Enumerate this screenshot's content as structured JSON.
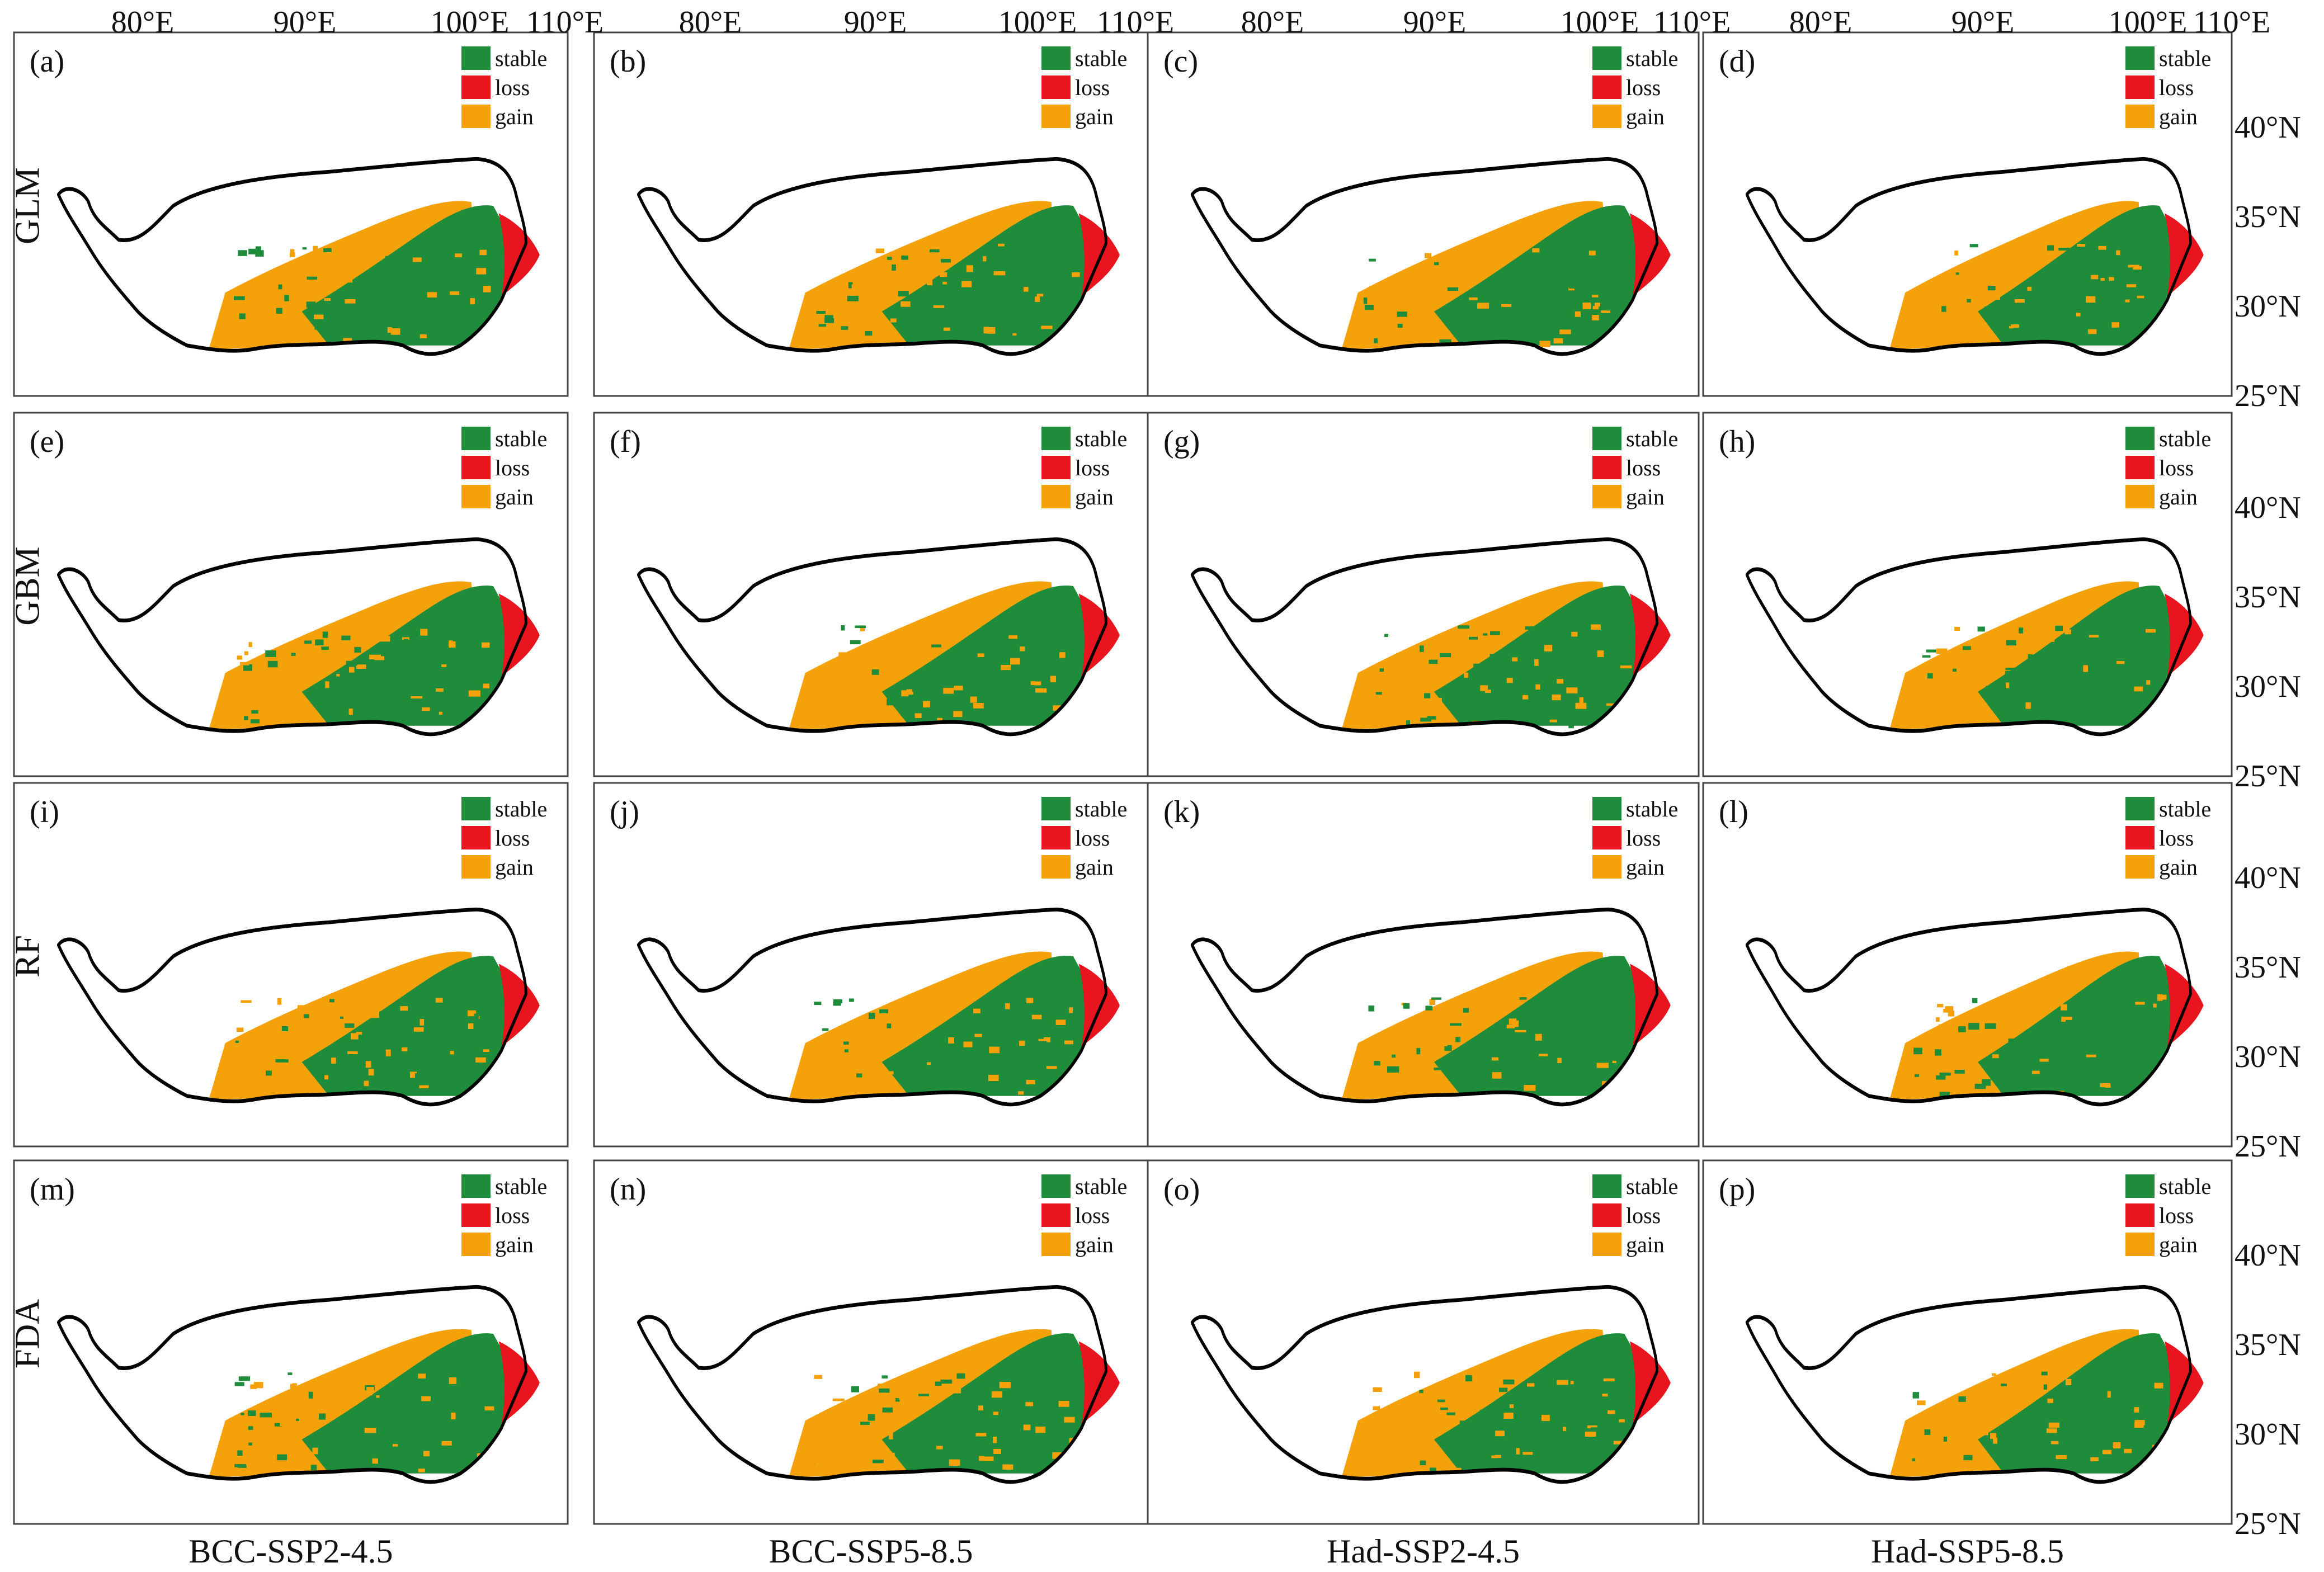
{
  "axes": {
    "lon_labels": [
      "80°E",
      "90°E",
      "100°E",
      "110°E"
    ],
    "lat_labels": [
      "40°N",
      "35°N",
      "30°N",
      "25°N"
    ]
  },
  "models": [
    "GLM",
    "GBM",
    "RF",
    "FDA"
  ],
  "scenarios": [
    "BCC-SSP2-4.5",
    "BCC-SSP5-8.5",
    "Had-SSP2-4.5",
    "Had-SSP5-8.5"
  ],
  "legend": [
    {
      "label": "stable",
      "color": "#1e8c3a"
    },
    {
      "label": "loss",
      "color": "#e8141e"
    },
    {
      "label": "gain",
      "color": "#f5a10a"
    }
  ],
  "panels": [
    {
      "label": "(a)",
      "model": "GLM",
      "scenario": "BCC-SSP2-4.5"
    },
    {
      "label": "(b)",
      "model": "GLM",
      "scenario": "BCC-SSP5-8.5"
    },
    {
      "label": "(c)",
      "model": "GLM",
      "scenario": "Had-SSP2-4.5"
    },
    {
      "label": "(d)",
      "model": "GLM",
      "scenario": "Had-SSP5-8.5"
    },
    {
      "label": "(e)",
      "model": "GBM",
      "scenario": "BCC-SSP2-4.5"
    },
    {
      "label": "(f)",
      "model": "GBM",
      "scenario": "BCC-SSP5-8.5"
    },
    {
      "label": "(g)",
      "model": "GBM",
      "scenario": "Had-SSP2-4.5"
    },
    {
      "label": "(h)",
      "model": "GBM",
      "scenario": "Had-SSP5-8.5"
    },
    {
      "label": "(i)",
      "model": "RF",
      "scenario": "BCC-SSP2-4.5"
    },
    {
      "label": "(j)",
      "model": "RF",
      "scenario": "BCC-SSP5-8.5"
    },
    {
      "label": "(k)",
      "model": "RF",
      "scenario": "Had-SSP2-4.5"
    },
    {
      "label": "(l)",
      "model": "RF",
      "scenario": "Had-SSP5-8.5"
    },
    {
      "label": "(m)",
      "model": "FDA",
      "scenario": "BCC-SSP2-4.5"
    },
    {
      "label": "(n)",
      "model": "FDA",
      "scenario": "BCC-SSP5-8.5"
    },
    {
      "label": "(o)",
      "model": "FDA",
      "scenario": "Had-SSP2-4.5"
    },
    {
      "label": "(p)",
      "model": "FDA",
      "scenario": "Had-SSP5-8.5"
    }
  ]
}
